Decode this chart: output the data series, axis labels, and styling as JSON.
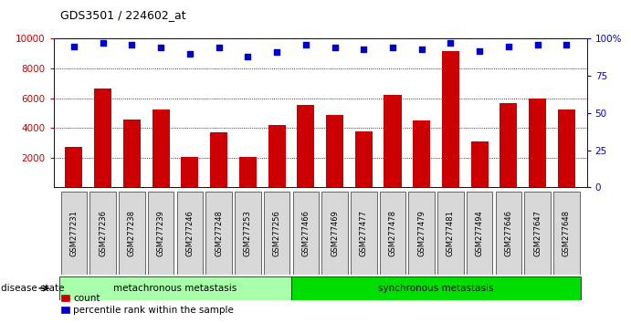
{
  "title": "GDS3501 / 224602_at",
  "categories": [
    "GSM277231",
    "GSM277236",
    "GSM277238",
    "GSM277239",
    "GSM277246",
    "GSM277248",
    "GSM277253",
    "GSM277256",
    "GSM277466",
    "GSM277469",
    "GSM277477",
    "GSM277478",
    "GSM277479",
    "GSM277481",
    "GSM277494",
    "GSM277646",
    "GSM277647",
    "GSM277648"
  ],
  "bar_values": [
    2750,
    6650,
    4550,
    5250,
    2050,
    3700,
    2050,
    4200,
    5550,
    4900,
    3750,
    6200,
    4500,
    9200,
    3100,
    5650,
    5950,
    5250
  ],
  "dot_values": [
    95,
    97,
    96,
    94,
    90,
    94,
    88,
    91,
    96,
    94,
    93,
    94,
    93,
    97,
    92,
    95,
    96,
    96
  ],
  "bar_color": "#cc0000",
  "dot_color": "#0000cc",
  "group1_label": "metachronous metastasis",
  "group2_label": "synchronous metastasis",
  "group1_count": 8,
  "group1_color": "#aaffaa",
  "group2_color": "#00dd00",
  "disease_state_label": "disease state",
  "legend_bar": "count",
  "legend_dot": "percentile rank within the sample",
  "ylim_left": [
    0,
    10000
  ],
  "ylim_right": [
    0,
    100
  ],
  "yticks_left": [
    2000,
    4000,
    6000,
    8000,
    10000
  ],
  "yticks_right": [
    0,
    25,
    50,
    75,
    100
  ],
  "background_color": "#ffffff",
  "plot_bg_color": "#ffffff",
  "xtick_bg": "#d8d8d8"
}
